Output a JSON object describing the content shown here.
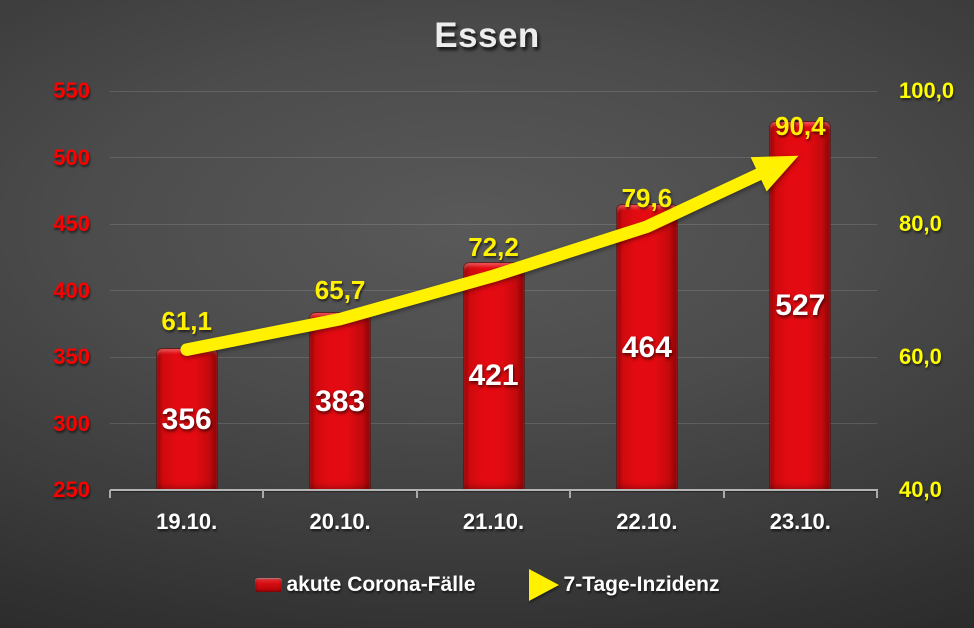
{
  "title": "Essen",
  "colors": {
    "background_center": "#565656",
    "background_edge": "#1d1d1d",
    "bar_red": "#df0a10",
    "line_yellow": "#fff100",
    "left_axis_text": "#fe0000",
    "right_axis_text": "#ffff00",
    "category_text": "#ffffff",
    "bar_value_text": "#ffffff",
    "title_text": "#ededed"
  },
  "chart_data": {
    "type": "bar",
    "title": "Essen",
    "categories": [
      "19.10.",
      "20.10.",
      "21.10.",
      "22.10.",
      "23.10."
    ],
    "series": [
      {
        "name": "akute Corona-Fälle",
        "type": "bar",
        "axis": "left",
        "color": "#df0a10",
        "values": [
          356,
          383,
          421,
          464,
          527
        ],
        "labels": [
          "356",
          "383",
          "421",
          "464",
          "527"
        ]
      },
      {
        "name": "7-Tage-Inzidenz",
        "type": "line-arrow",
        "axis": "right",
        "color": "#fff100",
        "values": [
          61.1,
          65.7,
          72.2,
          79.6,
          90.4
        ],
        "labels": [
          "61,1",
          "65,7",
          "72,2",
          "79,6",
          "90,4"
        ]
      }
    ],
    "left_axis": {
      "min": 250,
      "max": 550,
      "step": 50,
      "tick_labels": [
        "250",
        "300",
        "350",
        "400",
        "450",
        "500",
        "550"
      ],
      "color": "#fe0000"
    },
    "right_axis": {
      "min": 40,
      "max": 100,
      "grid_step": 10,
      "tick_values": [
        40,
        60,
        80,
        100
      ],
      "tick_labels": [
        "40,0",
        "60,0",
        "80,0",
        "100,0"
      ],
      "color": "#ffff00"
    },
    "grid": true,
    "legend_position": "bottom"
  },
  "legend": {
    "marker_icons": [
      "bar-swatch-icon",
      "triangle-arrow-icon"
    ]
  }
}
